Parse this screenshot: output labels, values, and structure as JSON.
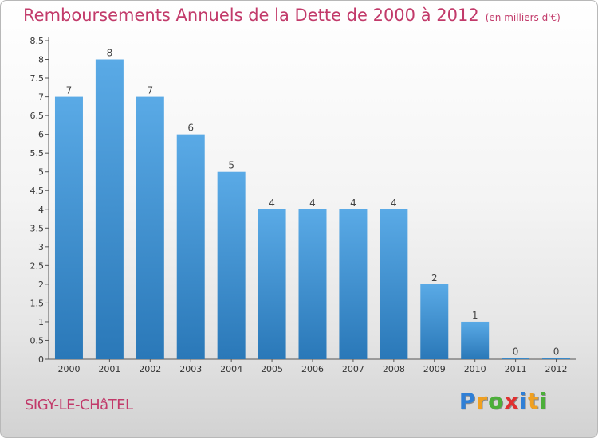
{
  "header": {
    "title": "Remboursements Annuels de la Dette de 2000 à 2012",
    "unit": "(en milliers d'€)"
  },
  "footer": {
    "place": "SIGY-LE-CHâTEL",
    "logo": [
      "P",
      "r",
      "o",
      "x",
      "i",
      "t",
      "i"
    ],
    "logo_colors": [
      "#2f7fd6",
      "#f0a020",
      "#4caf3a",
      "#e03030",
      "#2f7fd6",
      "#f0a020",
      "#4caf3a"
    ]
  },
  "chart_data": {
    "type": "bar",
    "title": "Remboursements Annuels de la Dette de 2000 à 2012",
    "categories": [
      "2000",
      "2001",
      "2002",
      "2003",
      "2004",
      "2005",
      "2006",
      "2007",
      "2008",
      "2009",
      "2010",
      "2011",
      "2012"
    ],
    "values": [
      7,
      8,
      7,
      6,
      5,
      4,
      4,
      4,
      4,
      2,
      1,
      0,
      0
    ],
    "ylim": [
      0,
      8.5
    ],
    "yticks": [
      "0",
      "0.5",
      "1",
      "1.5",
      "2",
      "2.5",
      "3",
      "3.5",
      "4",
      "4.5",
      "5",
      "5.5",
      "6",
      "6.5",
      "7",
      "7.5",
      "8",
      "8.5"
    ],
    "grid": false,
    "bar_color_top": "#5aaae6",
    "bar_color_bottom": "#2a78b8"
  }
}
